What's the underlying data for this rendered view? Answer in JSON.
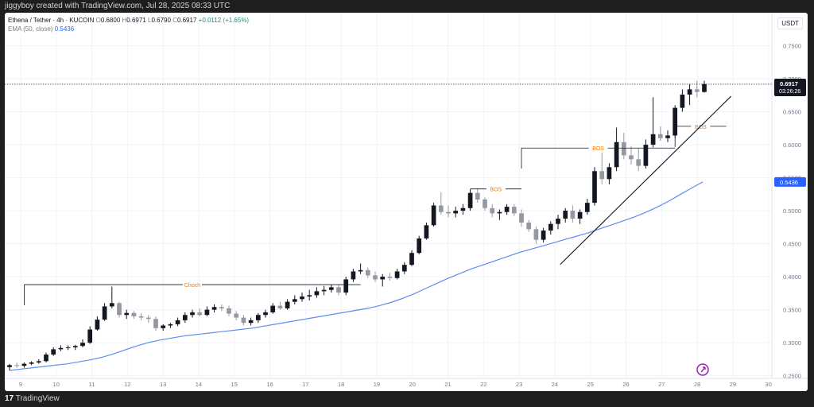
{
  "header": {
    "caption": "jiggyboy created with TradingView.com, Jul 28, 2025 08:33 UTC"
  },
  "legend": {
    "symbol": "Ethena / Tether · 4h · KUCOIN",
    "o_label": "O",
    "o": "0.6800",
    "h_label": "H",
    "h": "0.6971",
    "l_label": "L",
    "l": "0.6790",
    "c_label": "C",
    "c": "0.6917",
    "change": "+0.0112 (+1.65%)",
    "ema_label": "EMA (50, close)",
    "ema_value": "0.5436"
  },
  "footer": {
    "brand": "TradingView"
  },
  "colors": {
    "up": "#131722",
    "down": "#9598a1",
    "ema": "#5b8def",
    "annotation": "#f57c00",
    "price_tag_bg": "#131722",
    "ema_tag_bg": "#2962ff"
  },
  "chart_data": {
    "type": "candlestick",
    "unit": "USDT",
    "ylim": [
      0.27,
      0.77
    ],
    "y_ticks": [
      "0.7500",
      "0.7000",
      "0.6500",
      "0.6000",
      "0.5500",
      "0.5000",
      "0.4500",
      "0.4000",
      "0.3500",
      "0.3000",
      "0.2500"
    ],
    "y_tick_values": [
      0.75,
      0.7,
      0.65,
      0.6,
      0.55,
      0.5,
      0.45,
      0.4,
      0.35,
      0.3,
      0.25
    ],
    "x_ticks": [
      "9",
      "10",
      "11",
      "12",
      "13",
      "14",
      "15",
      "16",
      "17",
      "18",
      "19",
      "20",
      "21",
      "22",
      "23",
      "24",
      "25",
      "26",
      "27",
      "28",
      "29",
      "30"
    ],
    "last_price": "0.6917",
    "countdown": "03:26:26",
    "ema_label": "0.5436",
    "candles": [
      [
        0.263,
        0.268,
        0.258,
        0.266
      ],
      [
        0.266,
        0.27,
        0.262,
        0.265
      ],
      [
        0.265,
        0.27,
        0.262,
        0.268
      ],
      [
        0.268,
        0.272,
        0.266,
        0.27
      ],
      [
        0.27,
        0.275,
        0.268,
        0.272
      ],
      [
        0.272,
        0.285,
        0.27,
        0.282
      ],
      [
        0.282,
        0.293,
        0.28,
        0.29
      ],
      [
        0.29,
        0.296,
        0.287,
        0.292
      ],
      [
        0.292,
        0.296,
        0.289,
        0.293
      ],
      [
        0.293,
        0.297,
        0.289,
        0.295
      ],
      [
        0.295,
        0.305,
        0.293,
        0.3
      ],
      [
        0.3,
        0.325,
        0.298,
        0.32
      ],
      [
        0.32,
        0.34,
        0.318,
        0.335
      ],
      [
        0.335,
        0.36,
        0.333,
        0.355
      ],
      [
        0.355,
        0.385,
        0.352,
        0.36
      ],
      [
        0.36,
        0.362,
        0.338,
        0.342
      ],
      [
        0.342,
        0.35,
        0.336,
        0.345
      ],
      [
        0.345,
        0.348,
        0.336,
        0.34
      ],
      [
        0.34,
        0.345,
        0.334,
        0.338
      ],
      [
        0.338,
        0.342,
        0.33,
        0.336
      ],
      [
        0.336,
        0.34,
        0.318,
        0.322
      ],
      [
        0.322,
        0.328,
        0.318,
        0.326
      ],
      [
        0.326,
        0.33,
        0.322,
        0.328
      ],
      [
        0.328,
        0.338,
        0.325,
        0.334
      ],
      [
        0.334,
        0.346,
        0.33,
        0.342
      ],
      [
        0.342,
        0.35,
        0.338,
        0.346
      ],
      [
        0.346,
        0.352,
        0.34,
        0.342
      ],
      [
        0.342,
        0.355,
        0.34,
        0.35
      ],
      [
        0.35,
        0.358,
        0.346,
        0.354
      ],
      [
        0.354,
        0.358,
        0.348,
        0.352
      ],
      [
        0.352,
        0.356,
        0.34,
        0.344
      ],
      [
        0.344,
        0.348,
        0.334,
        0.338
      ],
      [
        0.338,
        0.342,
        0.326,
        0.33
      ],
      [
        0.33,
        0.338,
        0.326,
        0.334
      ],
      [
        0.334,
        0.345,
        0.33,
        0.342
      ],
      [
        0.342,
        0.35,
        0.338,
        0.346
      ],
      [
        0.346,
        0.36,
        0.344,
        0.356
      ],
      [
        0.356,
        0.362,
        0.35,
        0.352
      ],
      [
        0.352,
        0.366,
        0.35,
        0.362
      ],
      [
        0.362,
        0.372,
        0.358,
        0.366
      ],
      [
        0.366,
        0.376,
        0.362,
        0.37
      ],
      [
        0.37,
        0.38,
        0.364,
        0.372
      ],
      [
        0.372,
        0.384,
        0.368,
        0.378
      ],
      [
        0.378,
        0.386,
        0.372,
        0.38
      ],
      [
        0.38,
        0.388,
        0.376,
        0.384
      ],
      [
        0.384,
        0.388,
        0.372,
        0.376
      ],
      [
        0.376,
        0.4,
        0.372,
        0.396
      ],
      [
        0.396,
        0.412,
        0.392,
        0.408
      ],
      [
        0.408,
        0.42,
        0.404,
        0.41
      ],
      [
        0.41,
        0.414,
        0.398,
        0.402
      ],
      [
        0.402,
        0.408,
        0.392,
        0.396
      ],
      [
        0.396,
        0.404,
        0.385,
        0.4
      ],
      [
        0.4,
        0.406,
        0.394,
        0.398
      ],
      [
        0.398,
        0.412,
        0.396,
        0.408
      ],
      [
        0.408,
        0.422,
        0.404,
        0.418
      ],
      [
        0.418,
        0.44,
        0.416,
        0.436
      ],
      [
        0.436,
        0.462,
        0.434,
        0.458
      ],
      [
        0.458,
        0.482,
        0.456,
        0.478
      ],
      [
        0.478,
        0.512,
        0.476,
        0.508
      ],
      [
        0.508,
        0.528,
        0.494,
        0.498
      ],
      [
        0.498,
        0.508,
        0.49,
        0.496
      ],
      [
        0.496,
        0.506,
        0.49,
        0.5
      ],
      [
        0.5,
        0.51,
        0.494,
        0.504
      ],
      [
        0.504,
        0.532,
        0.5,
        0.527
      ],
      [
        0.527,
        0.534,
        0.512,
        0.517
      ],
      [
        0.517,
        0.52,
        0.5,
        0.504
      ],
      [
        0.504,
        0.51,
        0.49,
        0.496
      ],
      [
        0.496,
        0.502,
        0.486,
        0.498
      ],
      [
        0.498,
        0.51,
        0.494,
        0.506
      ],
      [
        0.506,
        0.51,
        0.492,
        0.496
      ],
      [
        0.496,
        0.502,
        0.476,
        0.482
      ],
      [
        0.482,
        0.486,
        0.468,
        0.472
      ],
      [
        0.472,
        0.476,
        0.45,
        0.456
      ],
      [
        0.456,
        0.474,
        0.452,
        0.47
      ],
      [
        0.47,
        0.484,
        0.464,
        0.48
      ],
      [
        0.48,
        0.494,
        0.472,
        0.488
      ],
      [
        0.488,
        0.504,
        0.482,
        0.5
      ],
      [
        0.5,
        0.508,
        0.482,
        0.488
      ],
      [
        0.488,
        0.502,
        0.48,
        0.498
      ],
      [
        0.498,
        0.518,
        0.494,
        0.512
      ],
      [
        0.512,
        0.566,
        0.508,
        0.56
      ],
      [
        0.56,
        0.588,
        0.54,
        0.548
      ],
      [
        0.548,
        0.572,
        0.54,
        0.566
      ],
      [
        0.566,
        0.626,
        0.56,
        0.604
      ],
      [
        0.604,
        0.618,
        0.578,
        0.584
      ],
      [
        0.584,
        0.598,
        0.57,
        0.578
      ],
      [
        0.578,
        0.594,
        0.56,
        0.568
      ],
      [
        0.568,
        0.608,
        0.564,
        0.6
      ],
      [
        0.6,
        0.672,
        0.596,
        0.616
      ],
      [
        0.616,
        0.628,
        0.606,
        0.61
      ],
      [
        0.61,
        0.622,
        0.604,
        0.614
      ],
      [
        0.614,
        0.66,
        0.61,
        0.656
      ],
      [
        0.656,
        0.684,
        0.65,
        0.676
      ],
      [
        0.676,
        0.692,
        0.66,
        0.684
      ],
      [
        0.684,
        0.697,
        0.672,
        0.68
      ],
      [
        0.68,
        0.697,
        0.679,
        0.692
      ]
    ],
    "ema": [
      0.258,
      0.26,
      0.262,
      0.264,
      0.266,
      0.268,
      0.271,
      0.274,
      0.278,
      0.283,
      0.289,
      0.295,
      0.3,
      0.304,
      0.307,
      0.31,
      0.312,
      0.314,
      0.316,
      0.318,
      0.32,
      0.322,
      0.325,
      0.328,
      0.331,
      0.334,
      0.337,
      0.34,
      0.343,
      0.346,
      0.349,
      0.352,
      0.356,
      0.361,
      0.367,
      0.374,
      0.382,
      0.39,
      0.398,
      0.405,
      0.412,
      0.418,
      0.424,
      0.43,
      0.436,
      0.441,
      0.446,
      0.451,
      0.456,
      0.461,
      0.466,
      0.472,
      0.478,
      0.484,
      0.49,
      0.497,
      0.505,
      0.514,
      0.524,
      0.534,
      0.5436
    ],
    "annotations": [
      {
        "label": "Choch",
        "price": 0.388,
        "from": 2,
        "to": 48
      },
      {
        "label": "BOS",
        "price": 0.533,
        "from": 63,
        "to": 70
      },
      {
        "label": "BOS",
        "price": 0.595,
        "from": 70,
        "to": 91
      },
      {
        "label": "BOS",
        "price": 0.628,
        "from": 91,
        "to": 98
      }
    ],
    "trendline": {
      "from": [
        0.4185,
        24.15
      ],
      "to": [
        0.6735,
        28.95
      ]
    }
  }
}
